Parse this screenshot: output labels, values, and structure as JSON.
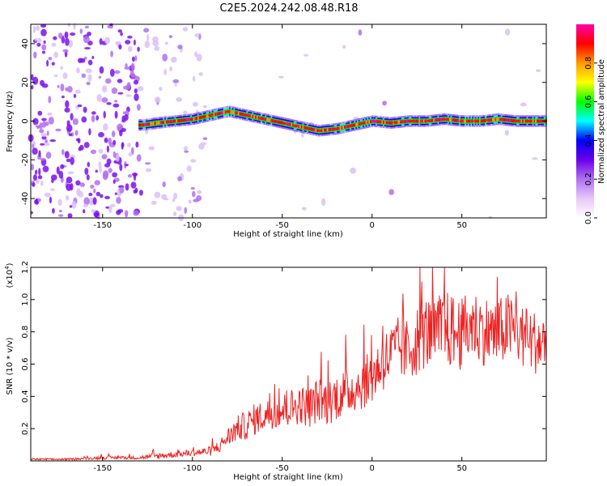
{
  "title": "C2E5.2024.242.08.48.R18",
  "colors": {
    "signal_line": "#ee2222",
    "background": "#ffffff",
    "colormap": [
      "#ffffff",
      "#e8c8f8",
      "#b070f0",
      "#6a00e8",
      "#0000ff",
      "#00ffff",
      "#00ff00",
      "#ffff00",
      "#ff9900",
      "#ff0000",
      "#ff00aa"
    ]
  },
  "chart_data": [
    {
      "type": "heatmap",
      "xlabel": "Height of straight line (km)",
      "ylabel": "Frequency (Hz)",
      "xlim": [
        -190,
        97
      ],
      "ylim": [
        -50,
        50
      ],
      "xticks": [
        -150,
        -100,
        -50,
        0,
        50
      ],
      "xtick_labels": [
        "-150",
        "-100",
        "-50",
        "0",
        "50"
      ],
      "yticks": [
        -40,
        -20,
        0,
        20,
        40
      ],
      "ytick_labels": [
        "-40",
        "-20",
        "0",
        "20",
        "40"
      ],
      "colorbar": {
        "label": "Normalized spectral amplitude",
        "range": [
          0,
          1
        ],
        "ticks": [
          0.0,
          0.2,
          0.4,
          0.6,
          0.8
        ],
        "tick_labels": [
          "0.0",
          "0.2",
          "0.4",
          "0.6",
          "0.8"
        ]
      },
      "ridge": {
        "x": [
          -128,
          -120,
          -110,
          -100,
          -90,
          -80,
          -70,
          -60,
          -50,
          -40,
          -30,
          -20,
          -10,
          0,
          10,
          20,
          30,
          40,
          50,
          60,
          70,
          80,
          90,
          97
        ],
        "frequency_hz": [
          -2,
          -1,
          0,
          1,
          3,
          5,
          3,
          1,
          -1,
          -3,
          -5,
          -4,
          -2,
          0,
          -1,
          0,
          0,
          1,
          0,
          0,
          1,
          0,
          0,
          0
        ]
      }
    },
    {
      "type": "line",
      "xlabel": "Height of straight line (km)",
      "ylabel": "SNR (10 * v/v)",
      "y_multiplier_label": "(x10",
      "y_multiplier_exponent": "4",
      "y_multiplier_close": ")",
      "xlim": [
        -190,
        97
      ],
      "ylim": [
        0,
        1.2
      ],
      "xticks": [
        -150,
        -100,
        -50,
        0,
        50
      ],
      "xtick_labels": [
        "-150",
        "-100",
        "-50",
        "0",
        "50"
      ],
      "yticks": [
        0.2,
        0.4,
        0.6,
        0.8,
        1.0,
        1.2
      ],
      "ytick_labels": [
        "0.2",
        "0.4",
        "0.6",
        "0.8",
        "1.0",
        "1.2"
      ],
      "series": [
        {
          "color": "#ee2222",
          "x": [
            -190,
            -170,
            -150,
            -130,
            -120,
            -110,
            -100,
            -90,
            -85,
            -80,
            -75,
            -70,
            -65,
            -60,
            -55,
            -50,
            -45,
            -40,
            -35,
            -30,
            -25,
            -20,
            -15,
            -10,
            -5,
            0,
            5,
            10,
            15,
            20,
            25,
            30,
            35,
            40,
            45,
            50,
            55,
            60,
            65,
            70,
            75,
            80,
            85,
            90,
            97
          ],
          "values": [
            0.01,
            0.01,
            0.02,
            0.02,
            0.03,
            0.04,
            0.05,
            0.06,
            0.09,
            0.15,
            0.2,
            0.22,
            0.26,
            0.28,
            0.3,
            0.31,
            0.33,
            0.35,
            0.33,
            0.38,
            0.36,
            0.4,
            0.42,
            0.45,
            0.48,
            0.52,
            0.6,
            0.65,
            0.7,
            0.68,
            0.75,
            0.8,
            0.78,
            0.82,
            0.8,
            0.78,
            0.85,
            0.82,
            0.8,
            0.78,
            0.83,
            0.8,
            0.76,
            0.74,
            0.72
          ],
          "spread": [
            0.005,
            0.005,
            0.01,
            0.01,
            0.02,
            0.02,
            0.02,
            0.03,
            0.04,
            0.06,
            0.08,
            0.09,
            0.1,
            0.1,
            0.1,
            0.11,
            0.12,
            0.12,
            0.13,
            0.14,
            0.14,
            0.15,
            0.15,
            0.15,
            0.16,
            0.17,
            0.18,
            0.2,
            0.2,
            0.2,
            0.22,
            0.23,
            0.23,
            0.24,
            0.24,
            0.23,
            0.23,
            0.22,
            0.22,
            0.22,
            0.22,
            0.21,
            0.2,
            0.2,
            0.2
          ]
        }
      ]
    }
  ]
}
